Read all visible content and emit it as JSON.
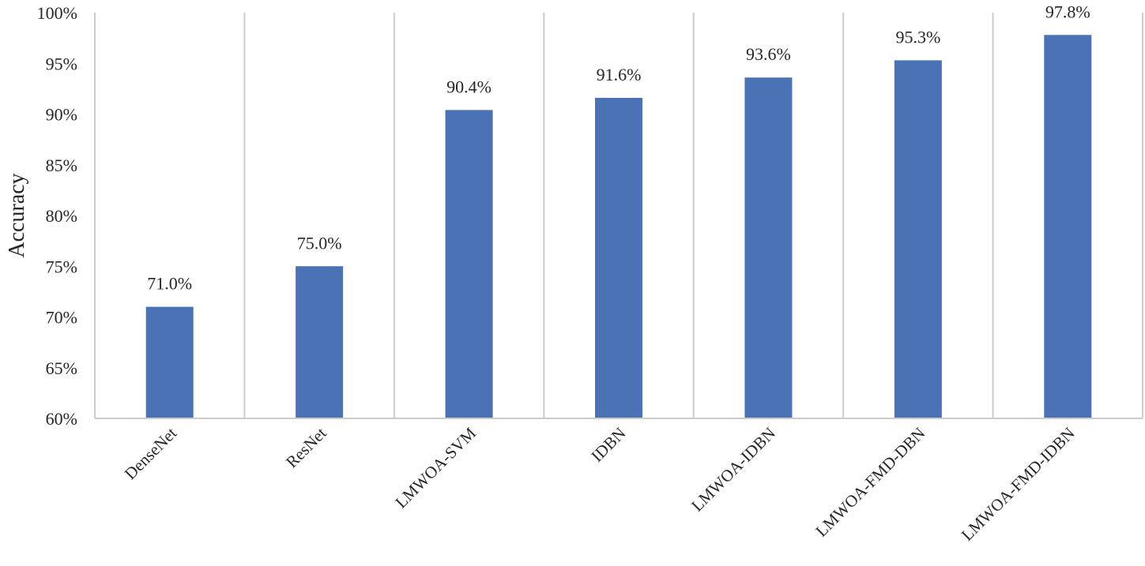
{
  "chart_data": {
    "type": "bar",
    "title": "",
    "xlabel": "",
    "ylabel": "Accuracy",
    "categories": [
      "DenseNet",
      "ResNet",
      "LMWOA-SVM",
      "IDBN",
      "LMWOA-IDBN",
      "LMWOA-FMD-DBN",
      "LMWOA-FMD-IDBN"
    ],
    "values": [
      71.0,
      75.0,
      90.4,
      91.6,
      93.6,
      95.3,
      97.8
    ],
    "data_labels": [
      "71.0%",
      "75.0%",
      "90.4%",
      "91.6%",
      "93.6%",
      "95.3%",
      "97.8%"
    ],
    "ylim": [
      60,
      100
    ],
    "yticks": [
      60,
      65,
      70,
      75,
      80,
      85,
      90,
      95,
      100
    ],
    "ytick_labels": [
      "60%",
      "65%",
      "70%",
      "75%",
      "80%",
      "85%",
      "90%",
      "95%",
      "100%"
    ],
    "grid": "vertical-category-separators",
    "legend": "none",
    "colors": {
      "bar": "#4a72b5",
      "grid": "#cccccc",
      "text": "#262626"
    }
  }
}
